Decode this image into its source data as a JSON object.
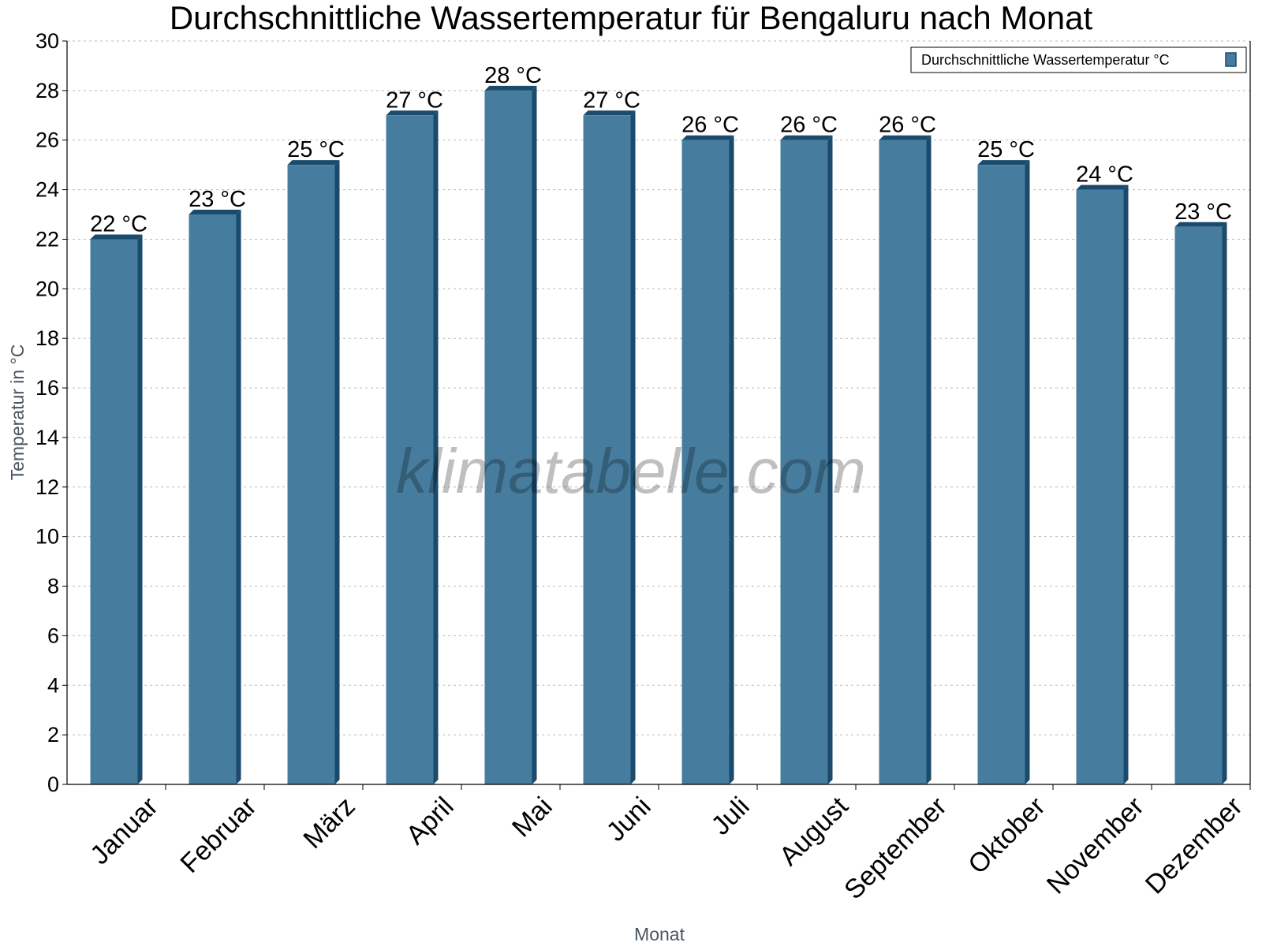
{
  "chart_data": {
    "type": "bar",
    "title": "Durchschnittliche Wassertemperatur für Bengaluru nach Monat",
    "xlabel": "Monat",
    "ylabel": "Temperatur in °C",
    "ylim": [
      0,
      30
    ],
    "yticks": [
      0,
      2,
      4,
      6,
      8,
      10,
      12,
      14,
      16,
      18,
      20,
      22,
      24,
      26,
      28,
      30
    ],
    "grid": true,
    "legend_position": "top-right",
    "categories": [
      "Januar",
      "Februar",
      "März",
      "April",
      "Mai",
      "Juni",
      "Juli",
      "August",
      "September",
      "Oktober",
      "November",
      "Dezember"
    ],
    "series": [
      {
        "name": "Durchschnittliche Wassertemperatur °C",
        "values": [
          22,
          23,
          25,
          27,
          28,
          27,
          26,
          26,
          26,
          25,
          24,
          22.5
        ],
        "labels": [
          "22 °C",
          "23 °C",
          "25 °C",
          "27 °C",
          "28 °C",
          "27 °C",
          "26 °C",
          "26 °C",
          "26 °C",
          "25 °C",
          "24 °C",
          "23 °C"
        ],
        "color": "#467c9e",
        "side_color": "#1a4a6c"
      }
    ],
    "watermark": "klimatabelle.com"
  }
}
